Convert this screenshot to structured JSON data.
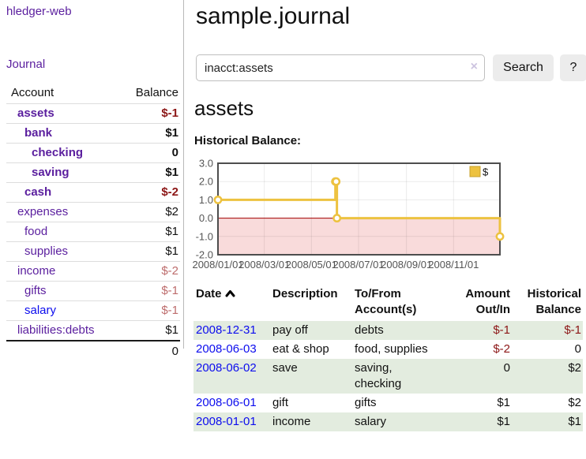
{
  "app": {
    "brand": "hledger-web",
    "nav_journal": "Journal"
  },
  "sidebar": {
    "col_account": "Account",
    "col_balance": "Balance",
    "accounts": [
      {
        "name": "assets",
        "balance": "$-1",
        "level": 1,
        "bold": true,
        "name_color": "purple",
        "balance_color": "negative"
      },
      {
        "name": "bank",
        "balance": "$1",
        "level": 2,
        "bold": true,
        "name_color": "purple",
        "balance_color": "normal"
      },
      {
        "name": "checking",
        "balance": "0",
        "level": 3,
        "bold": true,
        "name_color": "purple",
        "balance_color": "normal"
      },
      {
        "name": "saving",
        "balance": "$1",
        "level": 3,
        "bold": true,
        "name_color": "purple",
        "balance_color": "normal"
      },
      {
        "name": "cash",
        "balance": "$-2",
        "level": 2,
        "bold": true,
        "name_color": "purple",
        "balance_color": "negative"
      },
      {
        "name": "expenses",
        "balance": "$2",
        "level": 1,
        "bold": false,
        "name_color": "purple",
        "balance_color": "normal"
      },
      {
        "name": "food",
        "balance": "$1",
        "level": 2,
        "bold": false,
        "name_color": "purple",
        "balance_color": "normal"
      },
      {
        "name": "supplies",
        "balance": "$1",
        "level": 2,
        "bold": false,
        "name_color": "purple",
        "balance_color": "normal"
      },
      {
        "name": "income",
        "balance": "$-2",
        "level": 1,
        "bold": false,
        "name_color": "purple",
        "balance_color": "negative-faded"
      },
      {
        "name": "gifts",
        "balance": "$-1",
        "level": 2,
        "bold": false,
        "name_color": "purple",
        "balance_color": "negative-faded"
      },
      {
        "name": "salary",
        "balance": "$-1",
        "level": 2,
        "bold": false,
        "name_color": "blue",
        "balance_color": "negative-faded"
      },
      {
        "name": "liabilities:debts",
        "balance": "$1",
        "level": 1,
        "bold": false,
        "name_color": "purple",
        "balance_color": "normal"
      }
    ],
    "total": "0"
  },
  "header": {
    "title": "sample.journal"
  },
  "search": {
    "value": "inacct:assets",
    "clear_icon": "×",
    "button": "Search",
    "help_button": "?"
  },
  "account_page": {
    "heading": "assets",
    "chart_label": "Historical Balance:"
  },
  "chart_data": {
    "type": "line",
    "interpolation": "step",
    "title": "Historical Balance",
    "xlabel": "",
    "ylabel": "",
    "series": [
      {
        "name": "$",
        "color": "#edc240",
        "points": [
          [
            "2008-01-01",
            1
          ],
          [
            "2008-06-01",
            2
          ],
          [
            "2008-06-02",
            2
          ],
          [
            "2008-06-03",
            0
          ],
          [
            "2008-12-31",
            -1
          ]
        ]
      }
    ],
    "x_range": [
      "2008-01-01",
      "2008-12-31"
    ],
    "x_ticks": [
      "2008/01/01",
      "2008/03/01",
      "2008/05/01",
      "2008/07/01",
      "2008/09/01",
      "2008/11/01"
    ],
    "y_ticks": [
      "3.0",
      "2.0",
      "1.0",
      "0.0",
      "-1.0",
      "-2.0"
    ],
    "ylim": [
      -2,
      3
    ],
    "grid": true,
    "legend": {
      "label": "$",
      "position": "top-right"
    },
    "negative_region": true
  },
  "register": {
    "columns": {
      "date": "Date",
      "description": "Description",
      "accounts": "To/From Account(s)",
      "amount": "Amount Out/In",
      "balance": "Historical Balance"
    },
    "sort": "ascending",
    "rows": [
      {
        "date": "2008-12-31",
        "description": "pay off",
        "accounts": "debts",
        "amount": "$-1",
        "amount_negative": true,
        "balance": "$-1",
        "balance_negative": true,
        "shaded": true
      },
      {
        "date": "2008-06-03",
        "description": "eat & shop",
        "accounts": "food, supplies",
        "amount": "$-2",
        "amount_negative": true,
        "balance": "0",
        "balance_negative": false,
        "shaded": false
      },
      {
        "date": "2008-06-02",
        "description": "save",
        "accounts": "saving, checking",
        "amount": "0",
        "amount_negative": false,
        "balance": "$2",
        "balance_negative": false,
        "shaded": true
      },
      {
        "date": "2008-06-01",
        "description": "gift",
        "accounts": "gifts",
        "amount": "$1",
        "amount_negative": false,
        "balance": "$2",
        "balance_negative": false,
        "shaded": false
      },
      {
        "date": "2008-01-01",
        "description": "income",
        "accounts": "salary",
        "amount": "$1",
        "amount_negative": false,
        "balance": "$1",
        "balance_negative": false,
        "shaded": true
      }
    ]
  },
  "colors": {
    "purple_link": "#5a1e9e",
    "blue_link": "#0c0cee",
    "negative": "#8c1616",
    "negative_faded": "#bd6c6c",
    "row_green": "#e3ecdf",
    "chart_line": "#edc240",
    "chart_zero_line": "#a40000",
    "chart_negative_fill": "#f9dbdb",
    "chart_border": "#4d4d4d",
    "chart_tick_text": "#545454",
    "button_bg": "#ececec"
  }
}
